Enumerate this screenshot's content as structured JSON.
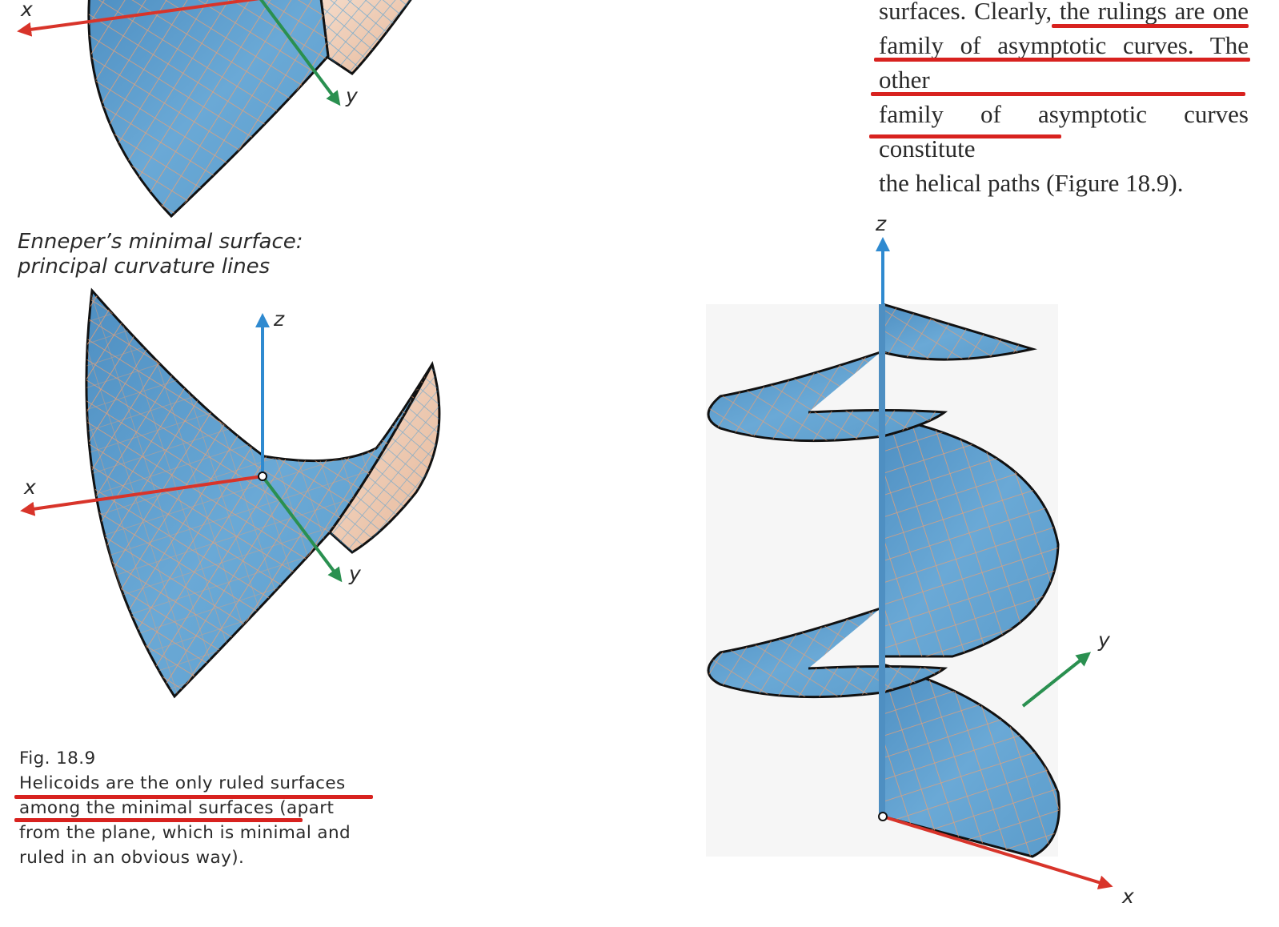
{
  "text_column": {
    "lines": [
      "surfaces. Clearly, the rulings are one",
      "family of asymptotic curves. The other",
      "family of asymptotic curves constitute",
      "the helical paths (Figure 18.9)."
    ]
  },
  "figure_top": {
    "axis_x": "x",
    "axis_y": "y"
  },
  "figure_enneper": {
    "caption_line1": "Enneper’s minimal surface:",
    "caption_line2": "principal curvature lines",
    "axis_x": "x",
    "axis_y": "y",
    "axis_z": "z"
  },
  "figure_helicoid": {
    "axis_x": "x",
    "axis_y": "y",
    "axis_z": "z"
  },
  "fig_caption": {
    "number": "Fig. 18.9",
    "lines": [
      "Helicoids are the only ruled surfaces",
      "among the minimal surfaces (apart",
      "from the plane, which is minimal and",
      "ruled in an obvious way)."
    ]
  },
  "colors": {
    "surface_blue": "#5b9ccb",
    "grid_orange": "#f0a070",
    "axis_red": "#d8342a",
    "axis_green": "#2a9050",
    "axis_blue": "#2f8ad0",
    "annotation_red": "#d8221f"
  }
}
